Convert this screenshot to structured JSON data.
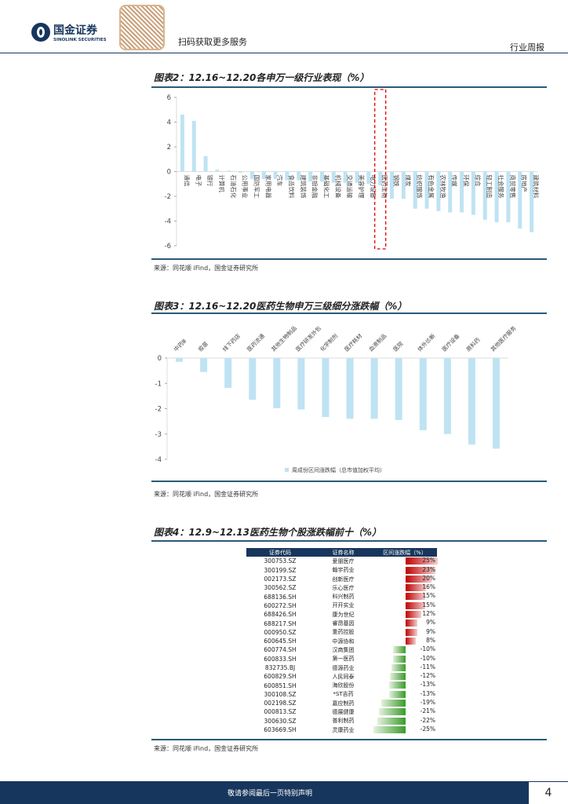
{
  "header": {
    "logo_cn": "国金证券",
    "logo_en": "SINOLINK SECURITIES",
    "qr_text": "扫码获取更多服务",
    "report_type": "行业周报",
    "brand_color": "#17365d"
  },
  "chart2": {
    "title": "图表2：12.16~12.20各申万一级行业表现（%）",
    "source": "来源：同花顺 iFind，国金证券研究所"
  },
  "chart3": {
    "title": "图表3：12.16~12.20医药生物申万三级细分涨跌幅（%）",
    "source": "来源：同花顺 iFind，国金证券研究所"
  },
  "table4": {
    "title": "图表4：12.9~12.13医药生物个股涨跌幅前十（%）",
    "source": "来源：同花顺 iFind，国金证券研究所",
    "headers": [
      "证券代码",
      "证券名称",
      "区间涨跌幅（%）"
    ],
    "rows": [
      {
        "code": "300753.SZ",
        "name": "爱朋医疗",
        "change": 25
      },
      {
        "code": "300199.SZ",
        "name": "翰宇药业",
        "change": 23
      },
      {
        "code": "002173.SZ",
        "name": "创新医疗",
        "change": 20
      },
      {
        "code": "300562.SZ",
        "name": "乐心医疗",
        "change": 16
      },
      {
        "code": "688136.SH",
        "name": "科兴制药",
        "change": 15
      },
      {
        "code": "600272.SH",
        "name": "开开实业",
        "change": 15
      },
      {
        "code": "688426.SH",
        "name": "康为世纪",
        "change": 12
      },
      {
        "code": "688217.SH",
        "name": "睿昂基因",
        "change": 9
      },
      {
        "code": "000950.SZ",
        "name": "重药控股",
        "change": 9
      },
      {
        "code": "600645.SH",
        "name": "中源协和",
        "change": 8
      },
      {
        "code": "600774.SH",
        "name": "汉商集团",
        "change": -10
      },
      {
        "code": "600833.SH",
        "name": "第一医药",
        "change": -10
      },
      {
        "code": "832735.BJ",
        "name": "德源药业",
        "change": -11
      },
      {
        "code": "600829.SH",
        "name": "人民同泰",
        "change": -12
      },
      {
        "code": "600851.SH",
        "name": "海欣股份",
        "change": -13
      },
      {
        "code": "300108.SZ",
        "name": "*ST吉药",
        "change": -13
      },
      {
        "code": "002198.SZ",
        "name": "嘉应制药",
        "change": -19
      },
      {
        "code": "000813.SZ",
        "name": "德展健康",
        "change": -21
      },
      {
        "code": "300630.SZ",
        "name": "普利制药",
        "change": -22
      },
      {
        "code": "603669.SH",
        "name": "灵康药业",
        "change": -25
      }
    ],
    "positive_color": "#c00000",
    "negative_color": "#3a9a2a"
  },
  "footer": {
    "disclaimer": "敬请参阅最后一页特别声明",
    "page": "4"
  },
  "chart_data": [
    {
      "type": "bar",
      "title": "图表2：12.16~12.20各申万一级行业表现（%）",
      "ylim": [
        -6,
        6
      ],
      "yticks": [
        6,
        4,
        2,
        0,
        -2,
        -4,
        -6
      ],
      "bar_color": "#bfe3f3",
      "highlight": "医药生物",
      "highlight_color": "#e00000",
      "categories": [
        "通信",
        "电子",
        "银行",
        "计算机",
        "石油石化",
        "公用事业",
        "国防军工",
        "家用电器",
        "汽车",
        "食品饮料",
        "建筑装饰",
        "非银金融",
        "基础化工",
        "机械设备",
        "交通运输",
        "美容护理",
        "电力设备",
        "医药生物",
        "钢铁",
        "煤炭",
        "纺织服饰",
        "有色金属",
        "农林牧渔",
        "传媒",
        "环保",
        "综合",
        "轻工制造",
        "社会服务",
        "商贸零售",
        "房地产",
        "建筑材料"
      ],
      "values": [
        4.6,
        4.1,
        1.25,
        0.15,
        0.08,
        -0.1,
        -0.6,
        -0.6,
        -0.6,
        -0.7,
        -0.7,
        -0.8,
        -0.8,
        -0.9,
        -0.9,
        -0.9,
        -1.0,
        -1.1,
        -2.2,
        -2.2,
        -3.0,
        -3.0,
        -3.2,
        -3.3,
        -3.3,
        -3.5,
        -3.9,
        -4.1,
        -4.1,
        -4.6,
        -4.9
      ]
    },
    {
      "type": "bar",
      "title": "图表3：12.16~12.20医药生物申万三级细分涨跌幅（%）",
      "ylim": [
        -4,
        0
      ],
      "yticks": [
        0,
        -1,
        -2,
        -3,
        -4
      ],
      "bar_color": "#bfe3f3",
      "legend": "周成份区间涨跌幅（总市值加权平均）",
      "legend_position": "bottom",
      "categories": [
        "中药Ⅲ",
        "疫苗",
        "线下药店",
        "医药流通",
        "其他生物制品",
        "医疗研发外包",
        "化学制剂",
        "医疗耗材",
        "血液制品",
        "医院",
        "体外诊断",
        "医疗设备",
        "原料药",
        "其他医疗服务"
      ],
      "values": [
        -0.15,
        -0.55,
        -1.18,
        -1.65,
        -1.98,
        -2.03,
        -2.33,
        -2.4,
        -2.4,
        -2.45,
        -2.85,
        -3.0,
        -3.42,
        -3.58
      ]
    }
  ]
}
